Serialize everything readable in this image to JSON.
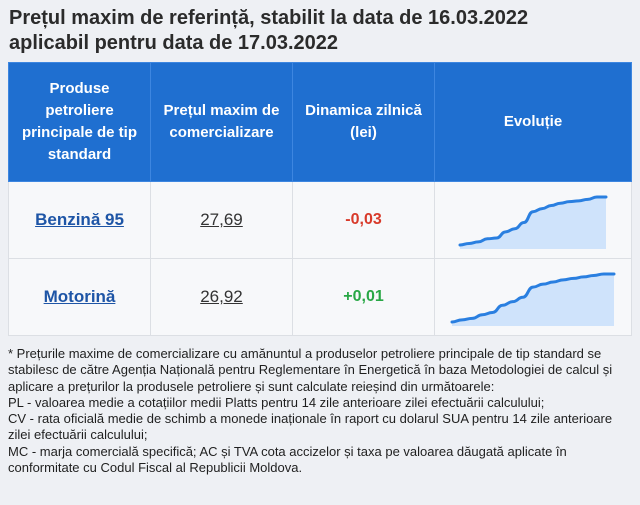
{
  "title": {
    "line1": "Prețul maxim de referință, stabilit la data de 16.03.2022",
    "line2": "aplicabil pentru data de 17.03.2022"
  },
  "table": {
    "headers": [
      "Produse petroliere principale de tip standard",
      "Prețul maxim de comercializare",
      "Dinamica zilnică (lei)",
      "Evoluție"
    ],
    "rows": [
      {
        "product": "Benzină 95",
        "price": "27,69",
        "change": "-0,03",
        "change_color": "#d83a2a",
        "trend": [
          1,
          3,
          5,
          9,
          10,
          18,
          22,
          30,
          44,
          48,
          52,
          55,
          57,
          58,
          60,
          63,
          63
        ]
      },
      {
        "product": "Motorină",
        "price": "26,92",
        "change": "+0,01",
        "change_color": "#28a745",
        "trend": [
          2,
          5,
          7,
          12,
          15,
          25,
          30,
          36,
          50,
          54,
          57,
          60,
          62,
          64,
          66,
          68,
          68
        ]
      }
    ]
  },
  "notes": [
    "* Prețurile maxime de comercializare cu amănuntul a produselor petroliere principale de tip standard se stabilesc de către Agenția Națională pentru Reglementare în Energetică în baza Metodologiei de calcul și aplicare a prețurilor la produsele petroliere și sunt calculate reieșind din următoarele:",
    "PL - valoarea medie a cotațiilor medii Platts pentru 14 zile anterioare zilei efectuării calculului;",
    "CV - rata oficială medie de schimb a monede inaționale în raport cu dolarul SUA pentru 14 zile anterioare zilei efectuării calculului;",
    "MC - marja comercială specifică; AC și TVA cota accizelor și taxa pe valoarea dăugată aplicate în conformitate cu Codul Fiscal al Republicii Moldova."
  ],
  "colors": {
    "header_bg": "#1f6fd0",
    "link": "#1e55a6",
    "negative": "#d83a2a",
    "positive": "#28a745",
    "spark_line": "#2a7fe0",
    "spark_fill": "#cfe3fb"
  }
}
